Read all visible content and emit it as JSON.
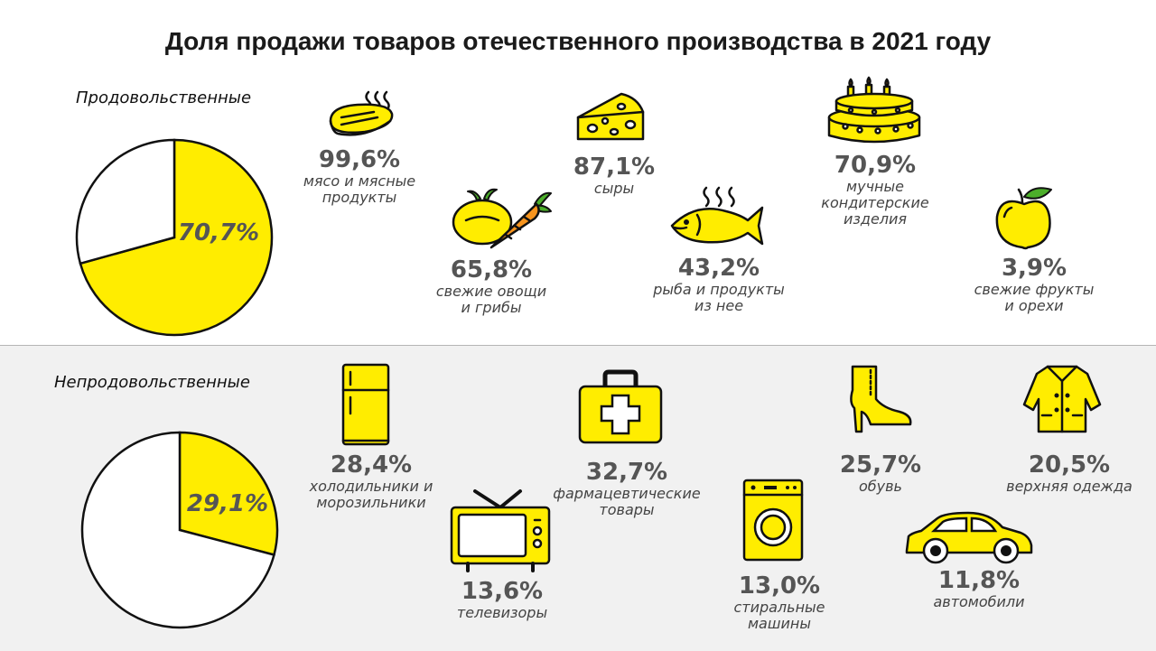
{
  "title": "Доля продажи товаров отечественного производства в 2021 году",
  "chart_data": [
    {
      "type": "pie",
      "title": "Продовольственные",
      "slices": [
        {
          "label": "70,7%",
          "value": 70.7,
          "color": "#ffed00"
        },
        {
          "label": "",
          "value": 29.3,
          "color": "#ffffff"
        }
      ],
      "items": [
        {
          "id": "meat",
          "value": 99.6,
          "value_text": "99,6%",
          "label": "мясо и мясные\nпродукты",
          "icon": "steak-icon"
        },
        {
          "id": "cheese",
          "value": 87.1,
          "value_text": "87,1%",
          "label": "сыры",
          "icon": "cheese-icon"
        },
        {
          "id": "cake",
          "value": 70.9,
          "value_text": "70,9%",
          "label": "мучные\nкондитерские\nизделия",
          "icon": "cake-icon"
        },
        {
          "id": "vegetables",
          "value": 65.8,
          "value_text": "65,8%",
          "label": "свежие овощи\nи грибы",
          "icon": "vegetables-icon"
        },
        {
          "id": "fish",
          "value": 43.2,
          "value_text": "43,2%",
          "label": "рыба и продукты\nиз нее",
          "icon": "fish-icon"
        },
        {
          "id": "fruits",
          "value": 3.9,
          "value_text": "3,9%",
          "label": "свежие фрукты\nи орехи",
          "icon": "apple-icon"
        }
      ]
    },
    {
      "type": "pie",
      "title": "Непродовольственные",
      "slices": [
        {
          "label": "29,1%",
          "value": 29.1,
          "color": "#ffed00"
        },
        {
          "label": "",
          "value": 70.9,
          "color": "#ffffff"
        }
      ],
      "items": [
        {
          "id": "fridges",
          "value": 28.4,
          "value_text": "28,4%",
          "label": "холодильники и\nморозильники",
          "icon": "fridge-icon"
        },
        {
          "id": "pharma",
          "value": 32.7,
          "value_text": "32,7%",
          "label": "фармацевтические\nтовары",
          "icon": "first-aid-kit-icon"
        },
        {
          "id": "shoes",
          "value": 25.7,
          "value_text": "25,7%",
          "label": "обувь",
          "icon": "boot-icon"
        },
        {
          "id": "outerwear",
          "value": 20.5,
          "value_text": "20,5%",
          "label": "верхняя одежда",
          "icon": "coat-icon"
        },
        {
          "id": "tv",
          "value": 13.6,
          "value_text": "13,6%",
          "label": "телевизоры",
          "icon": "tv-icon"
        },
        {
          "id": "washers",
          "value": 13.0,
          "value_text": "13,0%",
          "label": "стиральные\nмашины",
          "icon": "washing-machine-icon"
        },
        {
          "id": "cars",
          "value": 11.8,
          "value_text": "11,8%",
          "label": "автомобили",
          "icon": "car-icon"
        }
      ]
    }
  ],
  "colors": {
    "accent": "#ffed00",
    "panel": "#f1f1f1",
    "text": "#555555"
  }
}
